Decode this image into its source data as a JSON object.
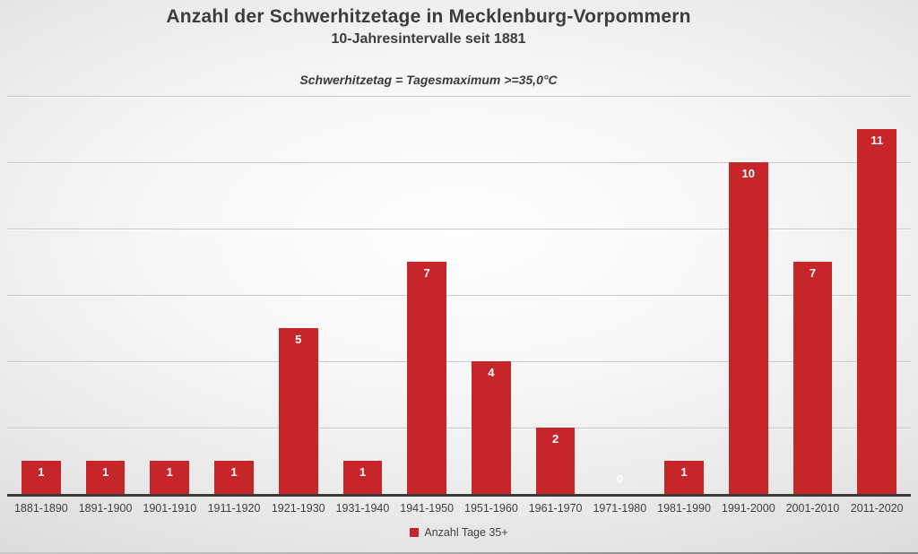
{
  "chart_data": {
    "type": "bar",
    "title": "Anzahl der Schwerhitzetage in Mecklenburg-Vorpommern",
    "subtitle": "10-Jahresintervalle seit 1881",
    "annotation": "Schwerhitzetag = Tagesmaximum >=35,0°C",
    "categories": [
      "1881-1890",
      "1891-1900",
      "1901-1910",
      "1911-1920",
      "1921-1930",
      "1931-1940",
      "1941-1950",
      "1951-1960",
      "1961-1970",
      "1971-1980",
      "1981-1990",
      "1991-2000",
      "2001-2010",
      "2011-2020"
    ],
    "values": [
      1,
      1,
      1,
      1,
      5,
      1,
      7,
      4,
      2,
      0,
      1,
      10,
      7,
      11
    ],
    "series_name": "Anzahl Tage 35+",
    "xlabel": "",
    "ylabel": "",
    "ylim": [
      0,
      12
    ],
    "grid": true,
    "grid_interval": 2,
    "y_axis_labels_visible": false,
    "data_labels": "inside-end",
    "legend_position": "bottom",
    "colors": {
      "bar": "#c62629",
      "value_label": "#ffffff",
      "title_text": "#3d3d3d",
      "axis_line": "#3a3a3a",
      "gridline": "#c8c8c8"
    }
  },
  "legend": {
    "label": "Anzahl Tage 35+"
  }
}
